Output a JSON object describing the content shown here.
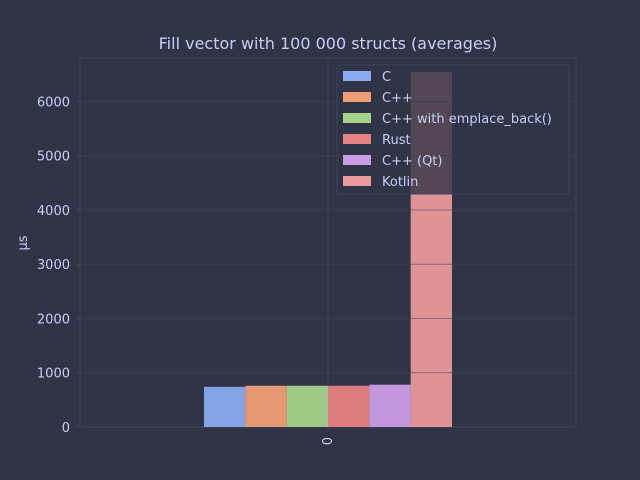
{
  "chart_data": {
    "type": "bar",
    "title": "Fill vector with 100 000 structs (averages)",
    "xlabel": "",
    "ylabel": "µs",
    "categories": [
      "0"
    ],
    "ylim": [
      0,
      6800
    ],
    "yticks": [
      0,
      1000,
      2000,
      3000,
      4000,
      5000,
      6000
    ],
    "grid": true,
    "legend_position": "top-right",
    "series": [
      {
        "name": "C",
        "values": [
          740
        ],
        "color": "#8caaee"
      },
      {
        "name": "C++",
        "values": [
          760
        ],
        "color": "#ef9f76"
      },
      {
        "name": "C++ with emplace_back()",
        "values": [
          760
        ],
        "color": "#a6d189"
      },
      {
        "name": "Rust",
        "values": [
          760
        ],
        "color": "#e78284"
      },
      {
        "name": "C++ (Qt)",
        "values": [
          780
        ],
        "color": "#ca9ee6"
      },
      {
        "name": "Kotlin",
        "values": [
          6540
        ],
        "color": "#ea999c"
      }
    ]
  },
  "colors": {
    "background": "#303446",
    "grid": "#414559",
    "text": "#c6d0f5"
  }
}
